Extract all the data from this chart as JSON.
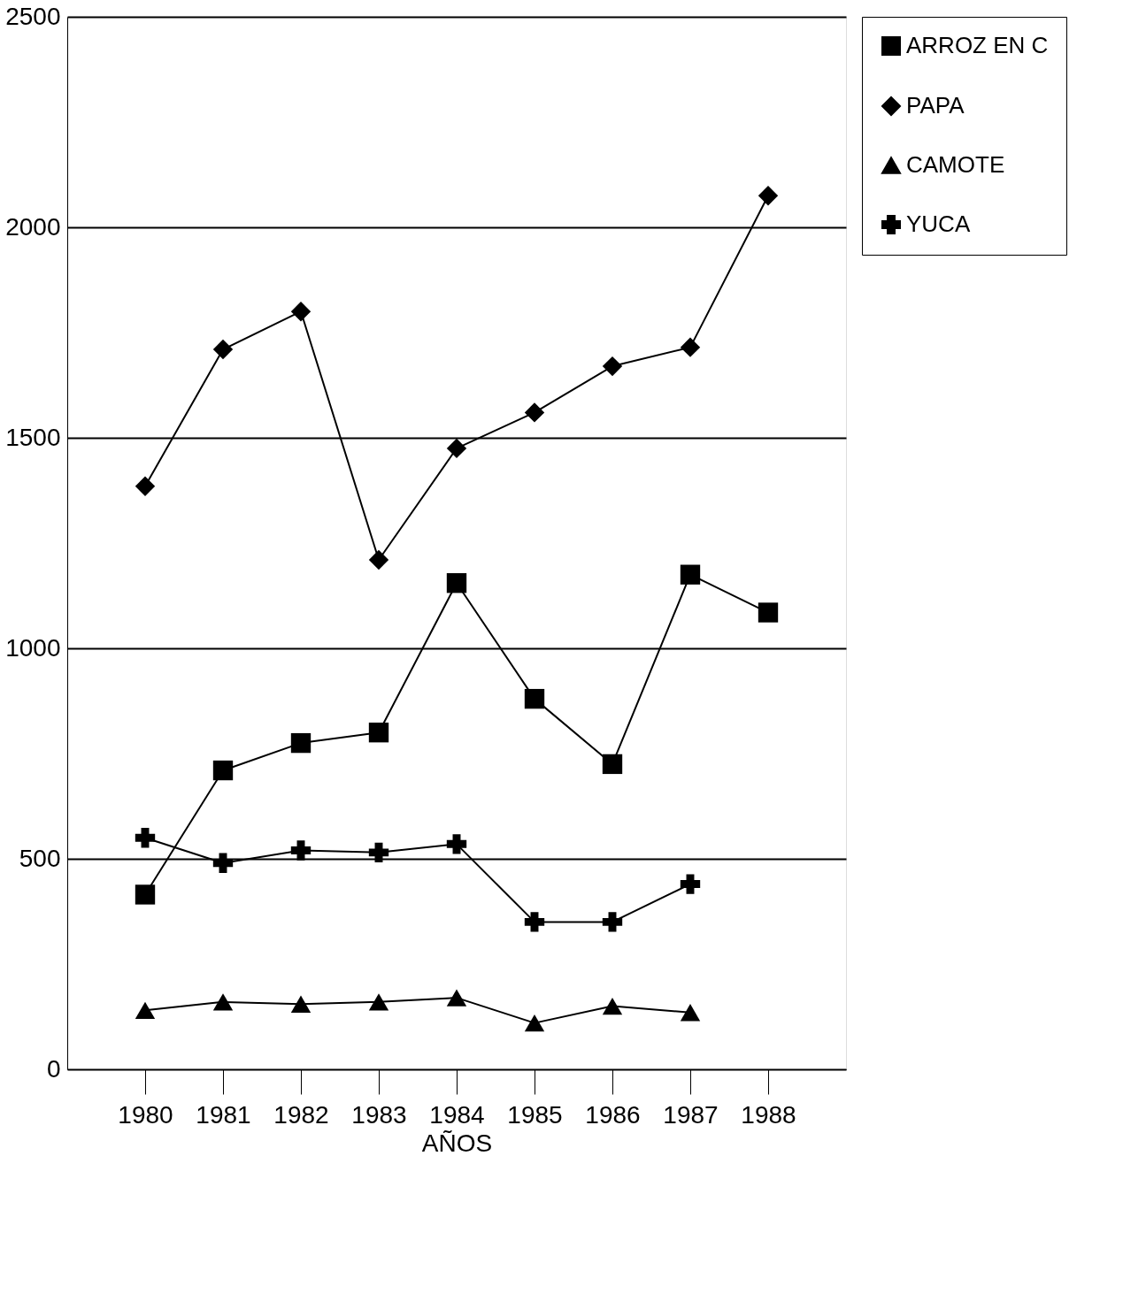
{
  "chart_data": {
    "type": "line",
    "xlabel": "AÑOS",
    "x": [
      1980,
      1981,
      1982,
      1983,
      1984,
      1985,
      1986,
      1987,
      1988
    ],
    "xlim": [
      1979,
      1989
    ],
    "xticks": [
      1980,
      1981,
      1982,
      1983,
      1984,
      1985,
      1986,
      1987,
      1988
    ],
    "ylim": [
      0,
      2500
    ],
    "yticks": [
      0,
      500,
      1000,
      1500,
      2000,
      2500
    ],
    "grid": "y",
    "legend": "top right",
    "line_style": "solid",
    "series": [
      {
        "name": "ARROZ EN C",
        "color": "#000000",
        "marker": "square",
        "values": [
          415,
          710,
          775,
          800,
          1155,
          880,
          725,
          1175,
          1085
        ]
      },
      {
        "name": "PAPA",
        "color": "#000000",
        "marker": "diamond",
        "values": [
          1385,
          1710,
          1800,
          1210,
          1475,
          1560,
          1670,
          1715,
          2075
        ]
      },
      {
        "name": "CAMOTE",
        "color": "#000000",
        "marker": "triangle",
        "values": [
          140,
          160,
          155,
          160,
          170,
          110,
          150,
          135,
          null
        ]
      },
      {
        "name": "YUCA",
        "color": "#000000",
        "marker": "cross",
        "values": [
          550,
          490,
          520,
          515,
          535,
          350,
          350,
          440,
          null
        ]
      }
    ]
  }
}
